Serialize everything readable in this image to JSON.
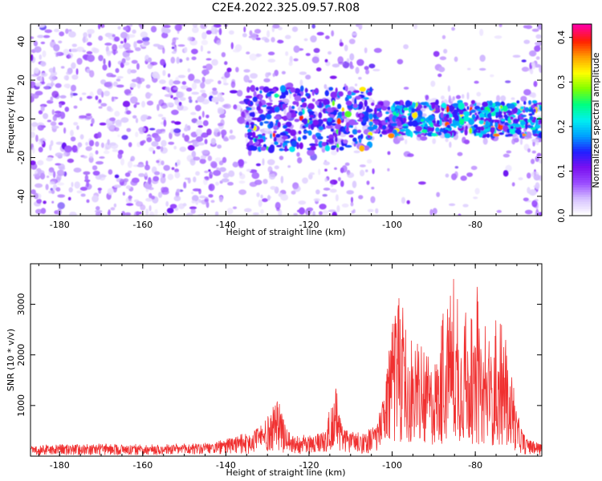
{
  "figure": {
    "title": "C2E4.2022.325.09.57.R08"
  },
  "colors": {
    "snr_line": "#f03030",
    "axis": "#000000",
    "colormap": [
      "#ffffff",
      "#d6c2ff",
      "#9a4dff",
      "#7a10f0",
      "#2020ff",
      "#00a0ff",
      "#00f0f0",
      "#00ff80",
      "#80ff00",
      "#ffff00",
      "#ffa000",
      "#ff2000",
      "#ff00a0"
    ]
  },
  "chart_data": [
    {
      "type": "heatmap",
      "xlabel": "Height of straight line (km)",
      "ylabel": "Frequency (Hz)",
      "xlim": [
        -187,
        -64
      ],
      "ylim": [
        -50,
        49
      ],
      "xticks": [
        -180,
        -160,
        -140,
        -120,
        -100,
        -80
      ],
      "xtick_labels": [
        "-180",
        "-160",
        "-140",
        "-120",
        "-100",
        "-80"
      ],
      "yticks": [
        40,
        20,
        0,
        -20,
        -40
      ],
      "ytick_labels": [
        "40",
        "20",
        "0",
        "-20",
        "-40"
      ],
      "colorbar": {
        "label": "Normalized spectral amplitude",
        "range": [
          0,
          0.43
        ],
        "ticks": [
          0.0,
          0.1,
          0.2,
          0.3,
          0.4
        ],
        "tick_labels": [
          "0.0",
          "0.1",
          "0.2",
          "0.3",
          "0.4"
        ]
      },
      "description_values": {
        "background_level": 0.05,
        "signal_band_center_hz": 0,
        "signal_band_halfwidth_hz": 8,
        "signal_region_km": [
          -135,
          -64
        ],
        "peak_amplitude": 0.4
      }
    },
    {
      "type": "line",
      "xlabel": "Height of straight line (km)",
      "ylabel": "SNR (10 * v/v)",
      "xlim": [
        -187,
        -64
      ],
      "ylim": [
        0,
        3800
      ],
      "xticks": [
        -180,
        -160,
        -140,
        -120,
        -100,
        -80
      ],
      "xtick_labels": [
        "-180",
        "-160",
        "-140",
        "-120",
        "-100",
        "-80"
      ],
      "yticks": [
        1000,
        2000,
        3000
      ],
      "ytick_labels": [
        "1000",
        "2000",
        "3000"
      ],
      "series": [
        {
          "x": [
            -187,
            -180,
            -170,
            -160,
            -150,
            -145,
            -140,
            -135,
            -131,
            -129,
            -127.5,
            -126,
            -124,
            -120,
            -116,
            -114.5,
            -113.5,
            -112,
            -108,
            -104,
            -102,
            -100,
            -99,
            -98,
            -96,
            -94,
            -92,
            -90,
            -88,
            -86,
            -84,
            -82,
            -80,
            -78,
            -76,
            -74,
            -72,
            -71,
            -70,
            -68,
            -66,
            -64
          ],
          "y": [
            150,
            160,
            170,
            160,
            170,
            180,
            230,
            320,
            450,
            620,
            800,
            450,
            300,
            280,
            380,
            700,
            950,
            400,
            320,
            420,
            800,
            1700,
            2200,
            1900,
            1300,
            1200,
            1150,
            1300,
            1500,
            2000,
            1800,
            1600,
            1500,
            1450,
            1400,
            1300,
            1200,
            900,
            600,
            250,
            200,
            180
          ],
          "peak_y": [
            150,
            170,
            180,
            180,
            190,
            210,
            270,
            400,
            650,
            900,
            1250,
            700,
            380,
            350,
            520,
            1400,
            1380,
            550,
            380,
            500,
            1100,
            2700,
            3400,
            3100,
            2500,
            2300,
            2100,
            2600,
            3000,
            3800,
            3100,
            2800,
            3600,
            2700,
            2900,
            2800,
            2100,
            1600,
            1000,
            350,
            280,
            240
          ]
        }
      ]
    }
  ]
}
